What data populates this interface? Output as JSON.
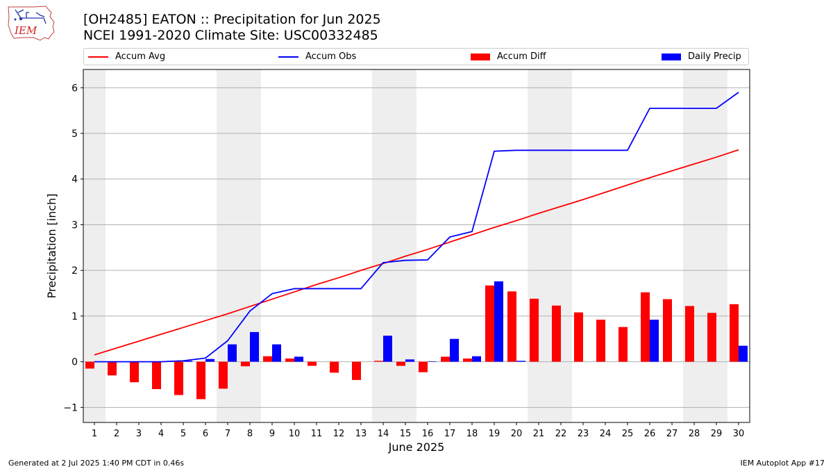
{
  "header": {
    "title_line1": "[OH2485] EATON :: Precipitation for Jun 2025",
    "title_line2": "NCEI 1991-2020 Climate Site: USC00332485",
    "logo_text": "IEM"
  },
  "legend": {
    "accum_avg": "Accum Avg",
    "accum_obs": "Accum Obs",
    "accum_diff": "Accum Diff",
    "daily_precip": "Daily Precip"
  },
  "footer": {
    "generated": "Generated at 2 Jul 2025 1:40 PM CDT in 0.46s",
    "app": "IEM Autoplot App #17"
  },
  "colors": {
    "accum_avg": "#ff0000",
    "accum_obs": "#0000ff",
    "accum_diff": "#ff0000",
    "daily_precip": "#0000ff",
    "weekend_shade": "#eeeeee",
    "grid": "#b0b0b0"
  },
  "chart_data": {
    "type": "bar",
    "xlabel": "June 2025",
    "ylabel": "Precipitation [inch]",
    "categories": [
      "1",
      "2",
      "3",
      "4",
      "5",
      "6",
      "7",
      "8",
      "9",
      "10",
      "11",
      "12",
      "13",
      "14",
      "15",
      "16",
      "17",
      "18",
      "19",
      "20",
      "21",
      "22",
      "23",
      "24",
      "25",
      "26",
      "27",
      "28",
      "29",
      "30"
    ],
    "ylim": [
      -1.33,
      6.4
    ],
    "yticks": [
      -1,
      0,
      1,
      2,
      3,
      4,
      5,
      6
    ],
    "grid": "horizontal",
    "legend_position": "top",
    "shaded_days": [
      1,
      7,
      8,
      14,
      15,
      21,
      22,
      28,
      29
    ],
    "series": [
      {
        "name": "Accum Avg",
        "kind": "line",
        "values": [
          0.15,
          0.3,
          0.45,
          0.6,
          0.75,
          0.9,
          1.05,
          1.21,
          1.37,
          1.53,
          1.69,
          1.84,
          2.0,
          2.15,
          2.31,
          2.46,
          2.62,
          2.78,
          2.94,
          3.09,
          3.25,
          3.4,
          3.55,
          3.71,
          3.87,
          4.03,
          4.18,
          4.33,
          4.48,
          4.64
        ]
      },
      {
        "name": "Accum Obs",
        "kind": "line",
        "values": [
          0.0,
          0.0,
          0.0,
          0.0,
          0.02,
          0.08,
          0.46,
          1.11,
          1.49,
          1.6,
          1.6,
          1.6,
          1.6,
          2.17,
          2.22,
          2.23,
          2.73,
          2.85,
          4.61,
          4.63,
          4.63,
          4.63,
          4.63,
          4.63,
          4.63,
          5.55,
          5.55,
          5.55,
          5.55,
          5.9
        ]
      },
      {
        "name": "Accum Diff",
        "kind": "bar",
        "values": [
          -0.15,
          -0.3,
          -0.45,
          -0.6,
          -0.73,
          -0.82,
          -0.59,
          -0.1,
          0.12,
          0.07,
          -0.09,
          -0.24,
          -0.4,
          0.02,
          -0.09,
          -0.23,
          0.11,
          0.07,
          1.67,
          1.54,
          1.38,
          1.23,
          1.08,
          0.92,
          0.76,
          1.52,
          1.37,
          1.22,
          1.07,
          1.26
        ]
      },
      {
        "name": "Daily Precip",
        "kind": "bar",
        "values": [
          0.0,
          0.0,
          0.0,
          0.0,
          0.02,
          0.06,
          0.38,
          0.65,
          0.38,
          0.11,
          0.0,
          0.0,
          0.0,
          0.57,
          0.05,
          0.01,
          0.5,
          0.12,
          1.76,
          0.02,
          0.0,
          0.0,
          0.0,
          0.0,
          0.0,
          0.92,
          0.0,
          0.0,
          0.0,
          0.35
        ]
      }
    ]
  }
}
